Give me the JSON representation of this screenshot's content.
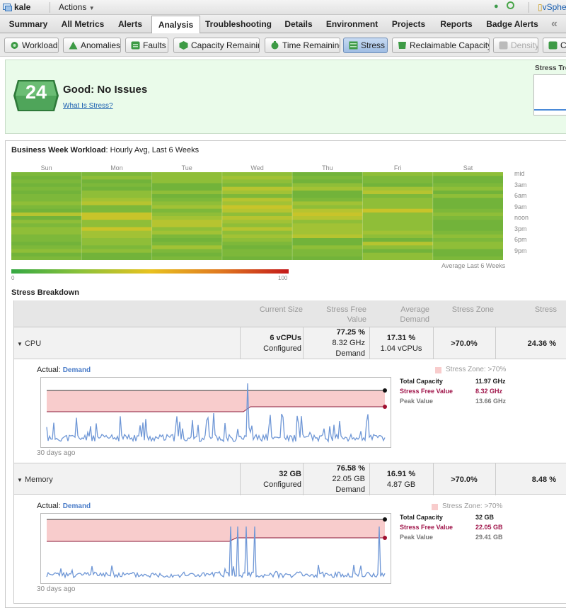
{
  "topbar": {
    "vm_name": "kale",
    "actions_label": "Actions",
    "vsphere_label": "vSphe"
  },
  "tabs": [
    {
      "label": "Summary"
    },
    {
      "label": "All Metrics"
    },
    {
      "label": "Alerts"
    },
    {
      "label": "Analysis",
      "active": true
    },
    {
      "label": "Troubleshooting"
    },
    {
      "label": "Details"
    },
    {
      "label": "Environment"
    },
    {
      "label": "Projects"
    },
    {
      "label": "Reports"
    },
    {
      "label": "Badge Alerts"
    }
  ],
  "subtabs": [
    {
      "label": "Workload",
      "icon": "workload-icon"
    },
    {
      "label": "Anomalies",
      "icon": "anomalies-icon"
    },
    {
      "label": "Faults",
      "icon": "faults-icon"
    },
    {
      "label": "Capacity Remaining",
      "icon": "capacity-remaining-icon"
    },
    {
      "label": "Time Remaining",
      "icon": "time-remaining-icon"
    },
    {
      "label": "Stress",
      "icon": "stress-icon",
      "active": true
    },
    {
      "label": "Reclaimable Capacity",
      "icon": "reclaimable-capacity-icon"
    },
    {
      "label": "Density",
      "icon": "density-icon",
      "disabled": true
    },
    {
      "label": "C",
      "icon": "compliance-icon"
    }
  ],
  "status": {
    "score": "24",
    "title": "Good: No Issues",
    "link": "What Is Stress?",
    "trend_label": "Stress Tre",
    "badge_color": "#3f8f48"
  },
  "workload": {
    "title_bold": "Business Week Workload",
    "title_rest": ": Hourly Avg, Last 6 Weeks",
    "days": [
      "Sun",
      "Mon",
      "Tue",
      "Wed",
      "Thu",
      "Fri",
      "Sat"
    ],
    "hours": [
      "mid",
      "3am",
      "6am",
      "9am",
      "noon",
      "3pm",
      "6pm",
      "9pm"
    ],
    "avg_label": "Average Last 6 Weeks",
    "scale_min": "0",
    "scale_max": "100"
  },
  "breakdown": {
    "title": "Stress Breakdown",
    "headers": {
      "current_size": "Current Size",
      "free_value_1": "Stress Free",
      "free_value_2": "Value",
      "avg_demand": "Average Demand",
      "zone": "Stress Zone",
      "stress": "Stress"
    },
    "rows": [
      {
        "label": "CPU",
        "size_1": "6 vCPUs",
        "size_2": "Configured",
        "free_1": "77.25 %",
        "free_2": "8.32 GHz",
        "free_3": "Demand",
        "demand_1": "17.31 %",
        "demand_2": "1.04 vCPUs",
        "zone": ">70.0%",
        "stress": "24.36 %",
        "actual_label": "Actual:",
        "actual_value": "Demand",
        "legend": "Stress Zone: >70%",
        "total_capacity_label": "Total Capacity",
        "total_capacity": "11.97 GHz",
        "stress_free_label": "Stress Free Value",
        "stress_free": "8.32 GHz",
        "peak_label": "Peak Value",
        "peak": "13.66 GHz",
        "ago": "30 days ago"
      },
      {
        "label": "Memory",
        "size_1": "32 GB",
        "size_2": "Configured",
        "free_1": "76.58 %",
        "free_2": "22.05 GB",
        "free_3": "Demand",
        "demand_1": "16.91 %",
        "demand_2": "4.87 GB",
        "zone": ">70.0%",
        "stress": "8.48 %",
        "actual_label": "Actual:",
        "actual_value": "Demand",
        "legend": "Stress Zone: >70%",
        "total_capacity_label": "Total Capacity",
        "total_capacity": "32 GB",
        "stress_free_label": "Stress Free Value",
        "stress_free": "22.05 GB",
        "peak_label": "Peak Value",
        "peak": "29.41 GB",
        "ago": "30 days ago"
      }
    ]
  },
  "colors": {
    "accent_link": "#1a5fb0",
    "demand_line": "#6f97d6",
    "stress_zone": "#f8cccc",
    "threshold_line": "#8a1a3a"
  }
}
